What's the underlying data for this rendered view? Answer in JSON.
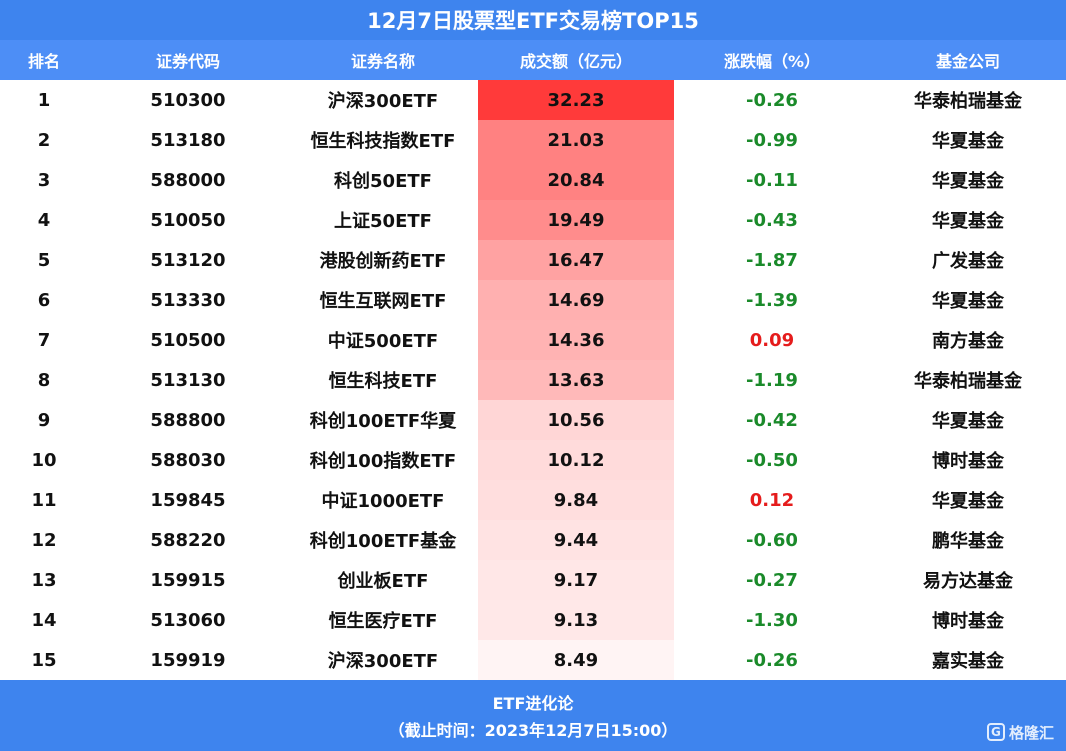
{
  "title": "12月7日股票型ETF交易榜TOP15",
  "headers": [
    "排名",
    "证券代码",
    "证券名称",
    "成交额（亿元）",
    "涨跌幅（%）",
    "基金公司"
  ],
  "rows": [
    {
      "rank": "1",
      "code": "510300",
      "name": "沪深300ETF",
      "amount": "32.23",
      "change": "-0.26",
      "company": "华泰柏瑞基金"
    },
    {
      "rank": "2",
      "code": "513180",
      "name": "恒生科技指数ETF",
      "amount": "21.03",
      "change": "-0.99",
      "company": "华夏基金"
    },
    {
      "rank": "3",
      "code": "588000",
      "name": "科创50ETF",
      "amount": "20.84",
      "change": "-0.11",
      "company": "华夏基金"
    },
    {
      "rank": "4",
      "code": "510050",
      "name": "上证50ETF",
      "amount": "19.49",
      "change": "-0.43",
      "company": "华夏基金"
    },
    {
      "rank": "5",
      "code": "513120",
      "name": "港股创新药ETF",
      "amount": "16.47",
      "change": "-1.87",
      "company": "广发基金"
    },
    {
      "rank": "6",
      "code": "513330",
      "name": "恒生互联网ETF",
      "amount": "14.69",
      "change": "-1.39",
      "company": "华夏基金"
    },
    {
      "rank": "7",
      "code": "510500",
      "name": "中证500ETF",
      "amount": "14.36",
      "change": "0.09",
      "company": "南方基金"
    },
    {
      "rank": "8",
      "code": "513130",
      "name": "恒生科技ETF",
      "amount": "13.63",
      "change": "-1.19",
      "company": "华泰柏瑞基金"
    },
    {
      "rank": "9",
      "code": "588800",
      "name": "科创100ETF华夏",
      "amount": "10.56",
      "change": "-0.42",
      "company": "华夏基金"
    },
    {
      "rank": "10",
      "code": "588030",
      "name": "科创100指数ETF",
      "amount": "10.12",
      "change": "-0.50",
      "company": "博时基金"
    },
    {
      "rank": "11",
      "code": "159845",
      "name": "中证1000ETF",
      "amount": "9.84",
      "change": "0.12",
      "company": "华夏基金"
    },
    {
      "rank": "12",
      "code": "588220",
      "name": "科创100ETF基金",
      "amount": "9.44",
      "change": "-0.60",
      "company": "鹏华基金"
    },
    {
      "rank": "13",
      "code": "159915",
      "name": "创业板ETF",
      "amount": "9.17",
      "change": "-0.27",
      "company": "易方达基金"
    },
    {
      "rank": "14",
      "code": "513060",
      "name": "恒生医疗ETF",
      "amount": "9.13",
      "change": "-1.30",
      "company": "博时基金"
    },
    {
      "rank": "15",
      "code": "159919",
      "name": "沪深300ETF",
      "amount": "8.49",
      "change": "-0.26",
      "company": "嘉实基金"
    }
  ],
  "footer": {
    "source": "ETF进化论",
    "cutoff": "（截止时间：2023年12月7日15:00）",
    "logo_text": "格隆汇",
    "logo_mark": "G"
  },
  "colors": {
    "header_bg": "#4d8ef6",
    "title_bg": "#3e84ee",
    "heat_max": "#ff3a3a",
    "heat_min": "#fff4f4",
    "positive": "#e51c1c",
    "negative": "#1a8a2a"
  },
  "chart_data": {
    "type": "table",
    "columns": [
      "排名",
      "证券代码",
      "证券名称",
      "成交额（亿元）",
      "涨跌幅（%）",
      "基金公司"
    ],
    "heatmap_column": "成交额（亿元）",
    "values_amount": [
      32.23,
      21.03,
      20.84,
      19.49,
      16.47,
      14.69,
      14.36,
      13.63,
      10.56,
      10.12,
      9.84,
      9.44,
      9.17,
      9.13,
      8.49
    ],
    "values_change": [
      -0.26,
      -0.99,
      -0.11,
      -0.43,
      -1.87,
      -1.39,
      0.09,
      -1.19,
      -0.42,
      -0.5,
      0.12,
      -0.6,
      -0.27,
      -1.3,
      -0.26
    ]
  }
}
